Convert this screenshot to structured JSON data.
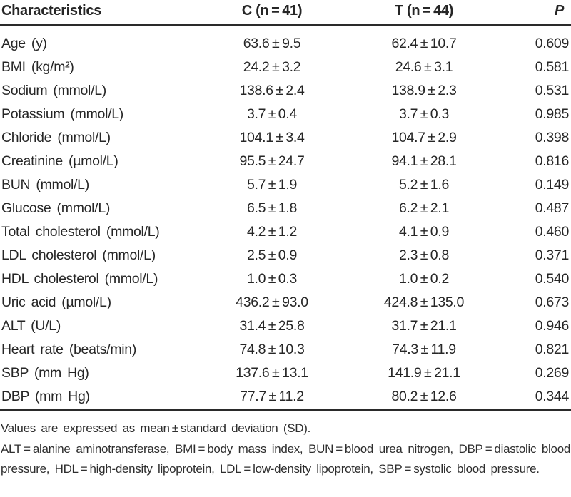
{
  "colors": {
    "background": "#ffffff",
    "text": "#262626",
    "rule": "#2a2a2a"
  },
  "table": {
    "headers": {
      "label": "Characteristics",
      "c": "C (n = 41)",
      "t": "T (n = 44)",
      "p": "P"
    },
    "rows": [
      {
        "label": "Age (y)",
        "c": "63.6 ± 9.5",
        "t": "62.4 ± 10.7",
        "p": "0.609"
      },
      {
        "label": "BMI (kg/m²)",
        "c": "24.2 ± 3.2",
        "t": "24.6 ± 3.1",
        "p": "0.581"
      },
      {
        "label": "Sodium (mmol/L)",
        "c": "138.6 ± 2.4",
        "t": "138.9 ± 2.3",
        "p": "0.531"
      },
      {
        "label": "Potassium (mmol/L)",
        "c": "3.7 ± 0.4",
        "t": "3.7 ± 0.3",
        "p": "0.985"
      },
      {
        "label": "Chloride (mmol/L)",
        "c": "104.1 ± 3.4",
        "t": "104.7 ± 2.9",
        "p": "0.398"
      },
      {
        "label": "Creatinine (µmol/L)",
        "c": "95.5 ± 24.7",
        "t": "94.1 ± 28.1",
        "p": "0.816"
      },
      {
        "label": "BUN (mmol/L)",
        "c": "5.7 ± 1.9",
        "t": "5.2 ± 1.6",
        "p": "0.149"
      },
      {
        "label": "Glucose (mmol/L)",
        "c": "6.5 ± 1.8",
        "t": "6.2 ± 2.1",
        "p": "0.487"
      },
      {
        "label": "Total cholesterol (mmol/L)",
        "c": "4.2 ± 1.2",
        "t": "4.1 ± 0.9",
        "p": "0.460"
      },
      {
        "label": "LDL cholesterol (mmol/L)",
        "c": "2.5 ± 0.9",
        "t": "2.3 ± 0.8",
        "p": "0.371"
      },
      {
        "label": "HDL cholesterol (mmol/L)",
        "c": "1.0 ± 0.3",
        "t": "1.0 ± 0.2",
        "p": "0.540"
      },
      {
        "label": "Uric acid (µmol/L)",
        "c": "436.2 ± 93.0",
        "t": "424.8 ± 135.0",
        "p": "0.673"
      },
      {
        "label": "ALT (U/L)",
        "c": "31.4 ± 25.8",
        "t": "31.7 ± 21.1",
        "p": "0.946"
      },
      {
        "label": "Heart rate (beats/min)",
        "c": "74.8 ± 10.3",
        "t": "74.3 ± 11.9",
        "p": "0.821"
      },
      {
        "label": "SBP (mm Hg)",
        "c": "137.6 ± 13.1",
        "t": "141.9 ± 21.1",
        "p": "0.269"
      },
      {
        "label": "DBP (mm Hg)",
        "c": "77.7 ± 11.2",
        "t": "80.2 ± 12.6",
        "p": "0.344"
      }
    ]
  },
  "footnotes": {
    "sd_note": "Values are expressed as mean ± standard deviation (SD).",
    "abbreviation_note": "ALT = alanine aminotransferase, BMI = body mass index, BUN = blood urea nitrogen, DBP = diastolic blood pressure, HDL = high-density lipoprotein, LDL = low-density lipoprotein, SBP = systolic blood pressure."
  },
  "chart_data": {
    "type": "table",
    "title": "",
    "columns": [
      "Characteristics",
      "C (n=41)",
      "T (n=44)",
      "P"
    ],
    "rows": [
      [
        "Age (y)",
        "63.6±9.5",
        "62.4±10.7",
        "0.609"
      ],
      [
        "BMI (kg/m2)",
        "24.2±3.2",
        "24.6±3.1",
        "0.581"
      ],
      [
        "Sodium (mmol/L)",
        "138.6±2.4",
        "138.9±2.3",
        "0.531"
      ],
      [
        "Potassium (mmol/L)",
        "3.7±0.4",
        "3.7±0.3",
        "0.985"
      ],
      [
        "Chloride (mmol/L)",
        "104.1±3.4",
        "104.7±2.9",
        "0.398"
      ],
      [
        "Creatinine (µmol/L)",
        "95.5±24.7",
        "94.1±28.1",
        "0.816"
      ],
      [
        "BUN (mmol/L)",
        "5.7±1.9",
        "5.2±1.6",
        "0.149"
      ],
      [
        "Glucose (mmol/L)",
        "6.5±1.8",
        "6.2±2.1",
        "0.487"
      ],
      [
        "Total cholesterol (mmol/L)",
        "4.2±1.2",
        "4.1±0.9",
        "0.460"
      ],
      [
        "LDL cholesterol (mmol/L)",
        "2.5±0.9",
        "2.3±0.8",
        "0.371"
      ],
      [
        "HDL cholesterol (mmol/L)",
        "1.0±0.3",
        "1.0±0.2",
        "0.540"
      ],
      [
        "Uric acid (µmol/L)",
        "436.2±93.0",
        "424.8±135.0",
        "0.673"
      ],
      [
        "ALT (U/L)",
        "31.4±25.8",
        "31.7±21.1",
        "0.946"
      ],
      [
        "Heart rate (beats/min)",
        "74.8±10.3",
        "74.3±11.9",
        "0.821"
      ],
      [
        "SBP (mm Hg)",
        "137.6±13.1",
        "141.9±21.1",
        "0.269"
      ],
      [
        "DBP (mm Hg)",
        "77.7±11.2",
        "80.2±12.6",
        "0.344"
      ]
    ]
  }
}
